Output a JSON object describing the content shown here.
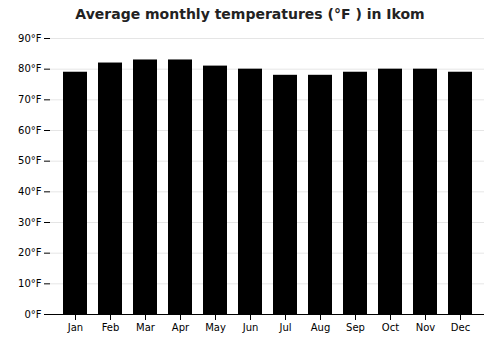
{
  "chart_data": {
    "type": "bar",
    "title": "Average monthly temperatures (°F ) in Ikom",
    "categories": [
      "Jan",
      "Feb",
      "Mar",
      "Apr",
      "May",
      "Jun",
      "Jul",
      "Aug",
      "Sep",
      "Oct",
      "Nov",
      "Dec"
    ],
    "values": [
      79,
      82,
      83,
      83,
      81,
      80,
      78,
      78,
      79,
      80,
      80,
      79
    ],
    "ylim": [
      0,
      90
    ],
    "yticks": [
      {
        "value": 0,
        "label": "0°F"
      },
      {
        "value": 10,
        "label": "10°F"
      },
      {
        "value": 20,
        "label": "20°F"
      },
      {
        "value": 30,
        "label": "30°F"
      },
      {
        "value": 40,
        "label": "40°F"
      },
      {
        "value": 50,
        "label": "50°F"
      },
      {
        "value": 60,
        "label": "60°F"
      },
      {
        "value": 70,
        "label": "70°F"
      },
      {
        "value": 80,
        "label": "80°F"
      },
      {
        "value": 90,
        "label": "90°F"
      }
    ],
    "grid": true
  }
}
